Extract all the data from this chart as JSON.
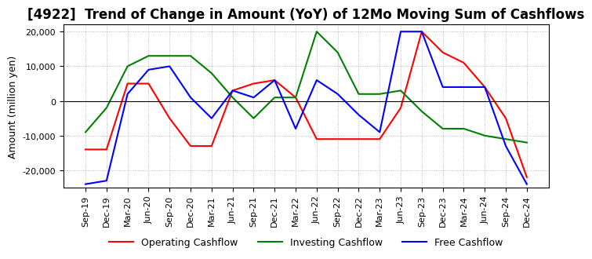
{
  "title": "[4922]  Trend of Change in Amount (YoY) of 12Mo Moving Sum of Cashflows",
  "ylabel": "Amount (million yen)",
  "ylim": [
    -25000,
    22000
  ],
  "yticks": [
    -20000,
    -10000,
    0,
    10000,
    20000
  ],
  "x_labels": [
    "Sep-19",
    "Dec-19",
    "Mar-20",
    "Jun-20",
    "Sep-20",
    "Dec-20",
    "Mar-21",
    "Jun-21",
    "Sep-21",
    "Dec-21",
    "Mar-22",
    "Jun-22",
    "Sep-22",
    "Dec-22",
    "Mar-23",
    "Jun-23",
    "Sep-23",
    "Dec-23",
    "Mar-24",
    "Jun-24",
    "Sep-24",
    "Dec-24"
  ],
  "operating": [
    -14000,
    -14000,
    5000,
    5000,
    -5000,
    -13000,
    -13000,
    3000,
    5000,
    6000,
    1000,
    -11000,
    -11000,
    -11000,
    -11000,
    -2000,
    20000,
    14000,
    11000,
    4000,
    -5000,
    -22000
  ],
  "investing": [
    -9000,
    -2000,
    10000,
    13000,
    13000,
    13000,
    8000,
    1000,
    -5000,
    1000,
    1000,
    20000,
    14000,
    2000,
    2000,
    3000,
    -3000,
    -8000,
    -8000,
    -10000,
    -11000,
    -12000
  ],
  "free": [
    -24000,
    -23000,
    2000,
    9000,
    10000,
    1000,
    -5000,
    3000,
    1000,
    6000,
    -8000,
    6000,
    2000,
    -4000,
    -9000,
    20000,
    20000,
    4000,
    4000,
    4000,
    -13000,
    -24000
  ],
  "operating_color": "#ff0000",
  "investing_color": "#008000",
  "free_color": "#0000ff",
  "background_color": "#ffffff",
  "grid_color": "#aaaaaa",
  "title_fontsize": 12,
  "label_fontsize": 9,
  "tick_fontsize": 8,
  "legend_fontsize": 9
}
